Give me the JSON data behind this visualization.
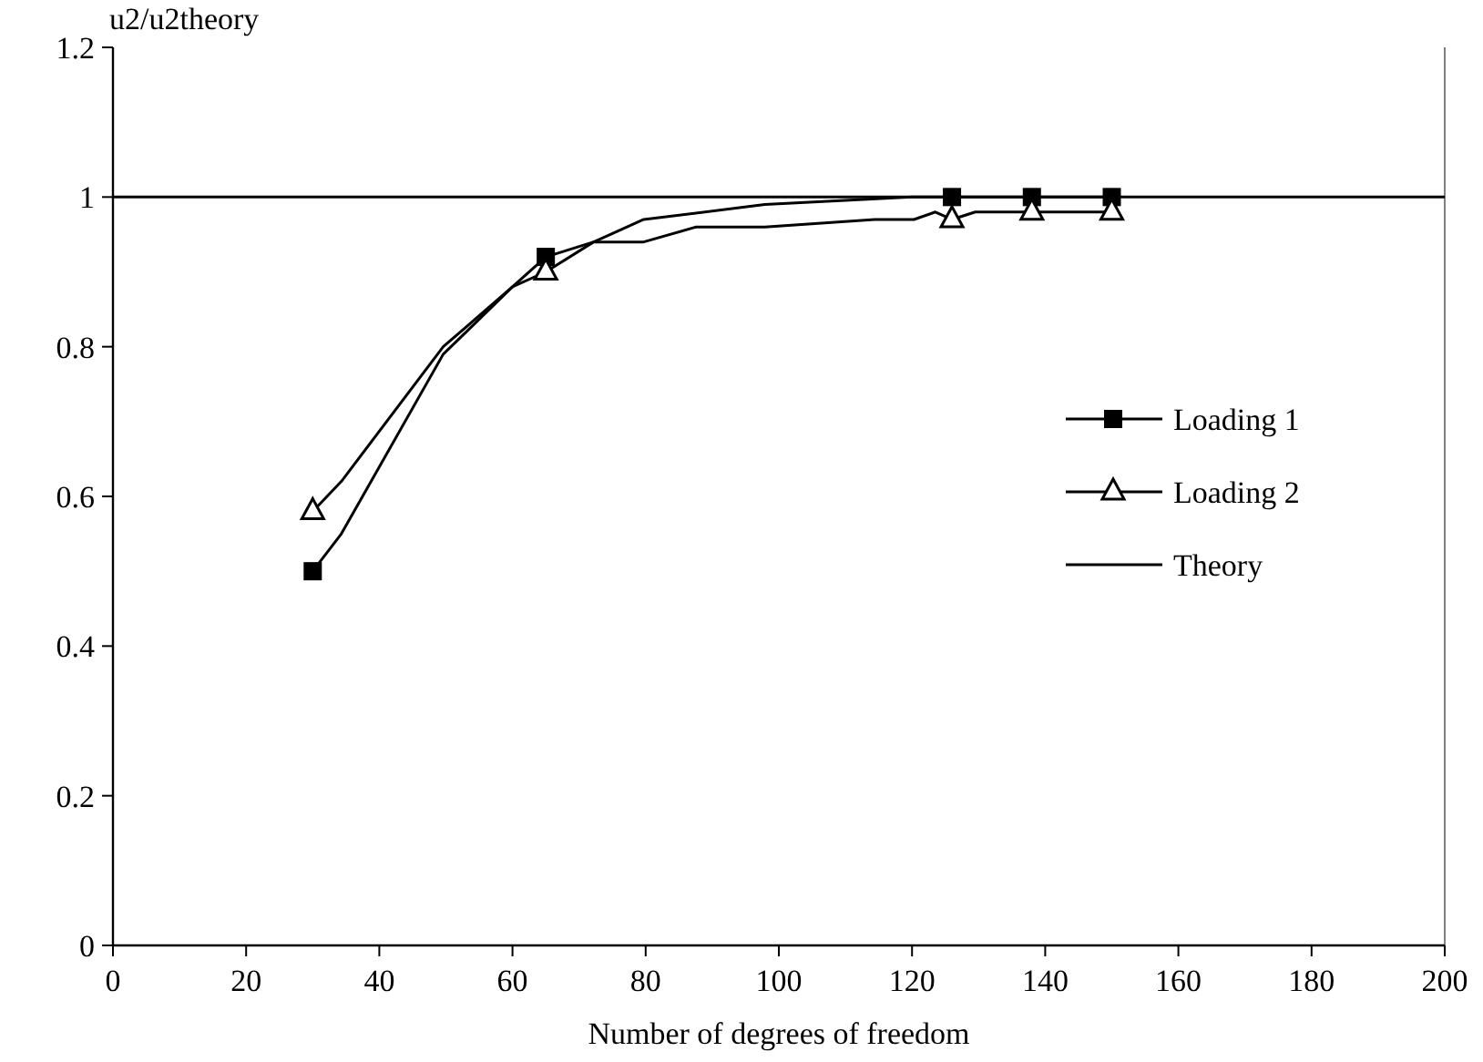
{
  "chart_data": {
    "type": "line",
    "ylabel": "u2/u2theory",
    "xlabel": "Number of degrees of freedom",
    "xlim": [
      0,
      200
    ],
    "xticks": [
      0,
      20,
      40,
      60,
      80,
      100,
      120,
      140,
      160,
      180,
      200
    ],
    "ylim": [
      0,
      1.2
    ],
    "yticks": [
      0,
      0.2,
      0.4,
      0.6,
      0.8,
      1,
      1.2
    ],
    "grid": false,
    "legend": "right",
    "line_style": "solid",
    "series": [
      {
        "color": "#000000",
        "marker": "none",
        "x": [
          30,
          34.3,
          49.6,
          60,
          65,
          72.2,
          79.7,
          97.9,
          120,
          126,
          129.5,
          133,
          138,
          150
        ],
        "values": [
          0.5,
          0.55,
          0.79,
          0.88,
          0.92,
          0.94,
          0.97,
          0.99,
          1.0,
          1.0,
          1.0,
          1.0,
          1.0,
          1.0
        ]
      },
      {
        "color": "#000000",
        "marker": "none",
        "x": [
          30,
          34.3,
          49.6,
          60,
          65,
          72.2,
          79.7,
          87.6,
          97.9,
          114.4,
          120.3,
          123.5,
          126,
          129.5,
          138,
          150
        ],
        "values": [
          0.58,
          0.62,
          0.8,
          0.88,
          0.9,
          0.94,
          0.94,
          0.96,
          0.96,
          0.97,
          0.97,
          0.98,
          0.97,
          0.98,
          0.98,
          0.98
        ]
      },
      {
        "name": "Loading 1",
        "type": "scatter",
        "color": "#000000",
        "marker": "square",
        "x": [
          30,
          65,
          126,
          138,
          150
        ],
        "values": [
          0.5,
          0.92,
          1.0,
          1.0,
          1.0
        ]
      },
      {
        "name": "Loading 2",
        "type": "scatter",
        "color": "#000000",
        "marker": "triangle",
        "x": [
          30,
          65,
          126,
          138,
          150
        ],
        "values": [
          0.58,
          0.9,
          0.97,
          0.98,
          0.98
        ]
      },
      {
        "name": "Theory",
        "color": "#000000",
        "marker": "none",
        "x": [
          0,
          200
        ],
        "values": [
          1,
          1
        ]
      }
    ]
  }
}
